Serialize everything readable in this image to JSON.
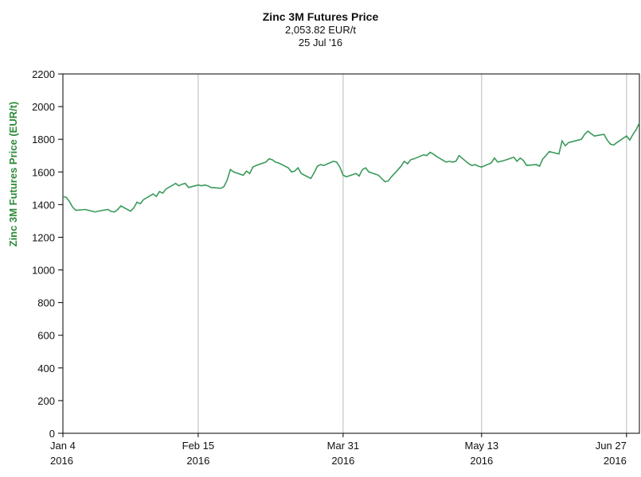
{
  "chart_data": {
    "type": "line",
    "title": "Zinc 3M Futures Price",
    "subtitle_value": "2,053.82 EUR/t",
    "subtitle_date": "25 Jul '16",
    "ylabel": "Zinc 3M Futures Price (EUR/t)",
    "xlabel": "",
    "ylim": [
      0,
      2200
    ],
    "yticks": [
      0,
      200,
      400,
      600,
      800,
      1000,
      1200,
      1400,
      1600,
      1800,
      2000,
      2200
    ],
    "xlim": [
      "2016-01-04",
      "2016-07-01"
    ],
    "xticks": [
      {
        "date": "2016-01-04",
        "label": "Jan 4",
        "year": "2016"
      },
      {
        "date": "2016-02-15",
        "label": "Feb 15",
        "year": "2016"
      },
      {
        "date": "2016-03-31",
        "label": "Mar 31",
        "year": "2016"
      },
      {
        "date": "2016-05-13",
        "label": "May 13",
        "year": "2016"
      },
      {
        "date": "2016-06-27",
        "label": "Jun 27",
        "year": "2016"
      }
    ],
    "grid": "vertical",
    "colors": {
      "line": "#3a9a5b",
      "axis_label": "#2e8b3a",
      "grid": "#c8c8c8",
      "axis": "#000000"
    },
    "series": [
      {
        "points": [
          [
            "2016-01-04",
            1450
          ],
          [
            "2016-01-05",
            1445
          ],
          [
            "2016-01-06",
            1420
          ],
          [
            "2016-01-07",
            1385
          ],
          [
            "2016-01-08",
            1365
          ],
          [
            "2016-01-11",
            1370
          ],
          [
            "2016-01-12",
            1365
          ],
          [
            "2016-01-13",
            1360
          ],
          [
            "2016-01-14",
            1355
          ],
          [
            "2016-01-15",
            1360
          ],
          [
            "2016-01-18",
            1370
          ],
          [
            "2016-01-19",
            1358
          ],
          [
            "2016-01-20",
            1355
          ],
          [
            "2016-01-21",
            1370
          ],
          [
            "2016-01-22",
            1392
          ],
          [
            "2016-01-25",
            1360
          ],
          [
            "2016-01-26",
            1380
          ],
          [
            "2016-01-27",
            1415
          ],
          [
            "2016-01-28",
            1405
          ],
          [
            "2016-01-29",
            1430
          ],
          [
            "2016-02-01",
            1465
          ],
          [
            "2016-02-02",
            1450
          ],
          [
            "2016-02-03",
            1480
          ],
          [
            "2016-02-04",
            1470
          ],
          [
            "2016-02-05",
            1495
          ],
          [
            "2016-02-08",
            1530
          ],
          [
            "2016-02-09",
            1515
          ],
          [
            "2016-02-10",
            1525
          ],
          [
            "2016-02-11",
            1530
          ],
          [
            "2016-02-12",
            1505
          ],
          [
            "2016-02-15",
            1520
          ],
          [
            "2016-02-16",
            1515
          ],
          [
            "2016-02-17",
            1520
          ],
          [
            "2016-02-18",
            1515
          ],
          [
            "2016-02-19",
            1505
          ],
          [
            "2016-02-22",
            1500
          ],
          [
            "2016-02-23",
            1510
          ],
          [
            "2016-02-24",
            1550
          ],
          [
            "2016-02-25",
            1615
          ],
          [
            "2016-02-26",
            1600
          ],
          [
            "2016-02-29",
            1580
          ],
          [
            "2016-03-01",
            1605
          ],
          [
            "2016-03-02",
            1590
          ],
          [
            "2016-03-03",
            1630
          ],
          [
            "2016-03-04",
            1640
          ],
          [
            "2016-03-07",
            1660
          ],
          [
            "2016-03-08",
            1680
          ],
          [
            "2016-03-09",
            1675
          ],
          [
            "2016-03-10",
            1660
          ],
          [
            "2016-03-11",
            1655
          ],
          [
            "2016-03-14",
            1625
          ],
          [
            "2016-03-15",
            1600
          ],
          [
            "2016-03-16",
            1605
          ],
          [
            "2016-03-17",
            1625
          ],
          [
            "2016-03-18",
            1590
          ],
          [
            "2016-03-21",
            1560
          ],
          [
            "2016-03-22",
            1595
          ],
          [
            "2016-03-23",
            1635
          ],
          [
            "2016-03-24",
            1645
          ],
          [
            "2016-03-25",
            1640
          ],
          [
            "2016-03-28",
            1665
          ],
          [
            "2016-03-29",
            1660
          ],
          [
            "2016-03-30",
            1630
          ],
          [
            "2016-03-31",
            1580
          ],
          [
            "2016-04-01",
            1570
          ],
          [
            "2016-04-04",
            1590
          ],
          [
            "2016-04-05",
            1575
          ],
          [
            "2016-04-06",
            1615
          ],
          [
            "2016-04-07",
            1625
          ],
          [
            "2016-04-08",
            1600
          ],
          [
            "2016-04-11",
            1580
          ],
          [
            "2016-04-12",
            1560
          ],
          [
            "2016-04-13",
            1540
          ],
          [
            "2016-04-14",
            1545
          ],
          [
            "2016-04-15",
            1570
          ],
          [
            "2016-04-18",
            1635
          ],
          [
            "2016-04-19",
            1665
          ],
          [
            "2016-04-20",
            1650
          ],
          [
            "2016-04-21",
            1675
          ],
          [
            "2016-04-22",
            1680
          ],
          [
            "2016-04-25",
            1705
          ],
          [
            "2016-04-26",
            1700
          ],
          [
            "2016-04-27",
            1720
          ],
          [
            "2016-04-28",
            1710
          ],
          [
            "2016-04-29",
            1695
          ],
          [
            "2016-05-02",
            1660
          ],
          [
            "2016-05-03",
            1665
          ],
          [
            "2016-05-04",
            1660
          ],
          [
            "2016-05-05",
            1665
          ],
          [
            "2016-05-06",
            1700
          ],
          [
            "2016-05-09",
            1650
          ],
          [
            "2016-05-10",
            1640
          ],
          [
            "2016-05-11",
            1645
          ],
          [
            "2016-05-12",
            1635
          ],
          [
            "2016-05-13",
            1630
          ],
          [
            "2016-05-16",
            1655
          ],
          [
            "2016-05-17",
            1685
          ],
          [
            "2016-05-18",
            1660
          ],
          [
            "2016-05-19",
            1665
          ],
          [
            "2016-05-20",
            1670
          ],
          [
            "2016-05-23",
            1690
          ],
          [
            "2016-05-24",
            1665
          ],
          [
            "2016-05-25",
            1685
          ],
          [
            "2016-05-26",
            1670
          ],
          [
            "2016-05-27",
            1640
          ],
          [
            "2016-05-30",
            1645
          ],
          [
            "2016-05-31",
            1635
          ],
          [
            "2016-06-01",
            1680
          ],
          [
            "2016-06-02",
            1700
          ],
          [
            "2016-06-03",
            1725
          ],
          [
            "2016-06-06",
            1710
          ],
          [
            "2016-06-07",
            1790
          ],
          [
            "2016-06-08",
            1760
          ],
          [
            "2016-06-09",
            1780
          ],
          [
            "2016-06-10",
            1785
          ],
          [
            "2016-06-13",
            1800
          ],
          [
            "2016-06-14",
            1830
          ],
          [
            "2016-06-15",
            1850
          ],
          [
            "2016-06-16",
            1835
          ],
          [
            "2016-06-17",
            1820
          ],
          [
            "2016-06-20",
            1830
          ],
          [
            "2016-06-21",
            1795
          ],
          [
            "2016-06-22",
            1770
          ],
          [
            "2016-06-23",
            1765
          ],
          [
            "2016-06-24",
            1780
          ],
          [
            "2016-06-27",
            1820
          ],
          [
            "2016-06-28",
            1795
          ],
          [
            "2016-06-29",
            1830
          ],
          [
            "2016-06-30",
            1860
          ],
          [
            "2016-07-01",
            1900
          ]
        ]
      }
    ]
  }
}
